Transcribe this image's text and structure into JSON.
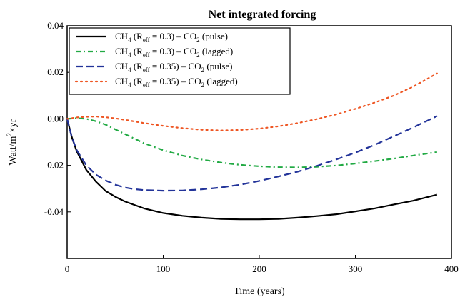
{
  "chart_data": {
    "type": "line",
    "title": "Net integrated forcing",
    "xlabel": "Time (years)",
    "ylabel": "Watt/m²×yr",
    "xlim": [
      0,
      400
    ],
    "ylim": [
      -0.06,
      0.04
    ],
    "xticks": [
      "0",
      "100",
      "200",
      "300",
      "400"
    ],
    "yticks": [
      "0.04",
      "0.02",
      "0.00",
      "-0.02",
      "-0.04"
    ],
    "grid": false,
    "legend_position": "top-left",
    "series": [
      {
        "name": "CH4 (Reff = 0.3) – CO2 (pulse)",
        "color": "#000000",
        "dash": "solid",
        "x": [
          0,
          5,
          10,
          20,
          30,
          40,
          50,
          60,
          70,
          80,
          100,
          120,
          140,
          160,
          180,
          200,
          220,
          240,
          260,
          280,
          300,
          320,
          340,
          360,
          385
        ],
        "y": [
          0.0,
          -0.008,
          -0.014,
          -0.022,
          -0.027,
          -0.031,
          -0.0335,
          -0.0355,
          -0.037,
          -0.0385,
          -0.0405,
          -0.0417,
          -0.0425,
          -0.043,
          -0.0432,
          -0.0432,
          -0.043,
          -0.0425,
          -0.0418,
          -0.041,
          -0.0398,
          -0.0385,
          -0.0368,
          -0.0352,
          -0.0326
        ]
      },
      {
        "name": "CH4 (Reff = 0.3) – CO2 (lagged)",
        "color": "#22aa44",
        "dash": "dashdot",
        "x": [
          0,
          10,
          20,
          30,
          40,
          50,
          60,
          80,
          100,
          120,
          140,
          160,
          180,
          200,
          220,
          240,
          260,
          280,
          300,
          320,
          340,
          360,
          385
        ],
        "y": [
          0.0,
          0.0003,
          0.0,
          -0.001,
          -0.0025,
          -0.0045,
          -0.0065,
          -0.0105,
          -0.0135,
          -0.0158,
          -0.0175,
          -0.0188,
          -0.0198,
          -0.0204,
          -0.0208,
          -0.0209,
          -0.0206,
          -0.0201,
          -0.0192,
          -0.0182,
          -0.0171,
          -0.0158,
          -0.0143
        ]
      },
      {
        "name": "CH4 (Reff = 0.35) – CO2 (pulse)",
        "color": "#223399",
        "dash": "dash",
        "x": [
          0,
          5,
          10,
          20,
          30,
          40,
          50,
          60,
          70,
          80,
          100,
          120,
          140,
          160,
          180,
          200,
          220,
          240,
          260,
          280,
          300,
          320,
          340,
          360,
          385
        ],
        "y": [
          0.0,
          -0.008,
          -0.0135,
          -0.02,
          -0.024,
          -0.0265,
          -0.0283,
          -0.0295,
          -0.0302,
          -0.0306,
          -0.0309,
          -0.0308,
          -0.0303,
          -0.0295,
          -0.0283,
          -0.0267,
          -0.0248,
          -0.0227,
          -0.0202,
          -0.0175,
          -0.0145,
          -0.0112,
          -0.0075,
          -0.0037,
          0.0012
        ]
      },
      {
        "name": "CH4 (Reff = 0.35) – CO2 (lagged)",
        "color": "#ee5522",
        "dash": "dot",
        "x": [
          0,
          10,
          20,
          30,
          40,
          50,
          60,
          80,
          100,
          120,
          140,
          160,
          180,
          200,
          220,
          240,
          260,
          280,
          300,
          320,
          340,
          360,
          385
        ],
        "y": [
          0.0,
          0.0006,
          0.0009,
          0.001,
          0.0007,
          0.0002,
          -0.0004,
          -0.0018,
          -0.003,
          -0.004,
          -0.0047,
          -0.005,
          -0.0048,
          -0.0042,
          -0.0032,
          -0.0018,
          -0.0001,
          0.0019,
          0.0043,
          0.007,
          0.01,
          0.0138,
          0.0195
        ]
      }
    ]
  },
  "legend": {
    "entries": [
      {
        "a": "CH",
        "b": "4",
        "c": " (R",
        "d": "eff",
        "e": " = 0.3)  –  CO",
        "f": "2",
        "g": " (pulse)"
      },
      {
        "a": "CH",
        "b": "4",
        "c": " (R",
        "d": "eff",
        "e": " = 0.3)  –  CO",
        "f": "2",
        "g": " (lagged)"
      },
      {
        "a": "CH",
        "b": "4",
        "c": " (R",
        "d": "eff",
        "e": " = 0.35) – CO",
        "f": "2",
        "g": " (pulse)"
      },
      {
        "a": "CH",
        "b": "4",
        "c": " (R",
        "d": "eff",
        "e": " = 0.35) – CO",
        "f": "2",
        "g": " (lagged)"
      }
    ]
  },
  "ylabel_parts": {
    "a": "Watt/m",
    "b": "2",
    "c": "×yr"
  }
}
